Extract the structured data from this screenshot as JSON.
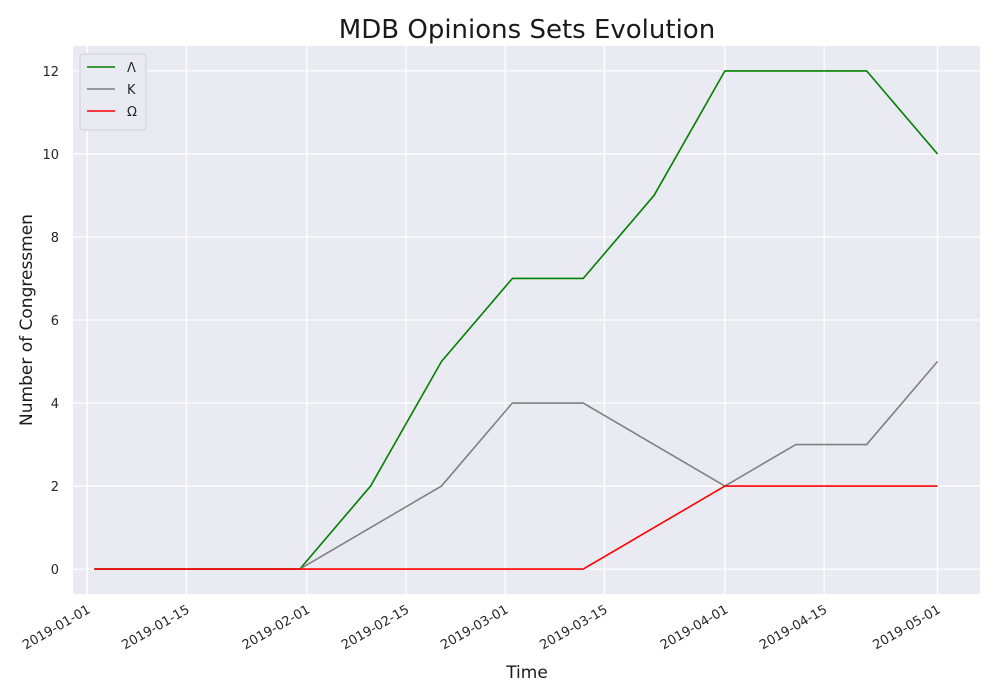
{
  "chart_data": {
    "type": "line",
    "title": "MDB Opinions Sets Evolution",
    "xlabel": "Time",
    "ylabel": "Number of Congressmen",
    "x_tick_labels": [
      "2019-01-01",
      "2019-01-15",
      "2019-02-01",
      "2019-02-15",
      "2019-03-01",
      "2019-03-15",
      "2019-04-01",
      "2019-04-15",
      "2019-05-01"
    ],
    "y_tick_labels": [
      "0",
      "2",
      "4",
      "6",
      "8",
      "10",
      "12"
    ],
    "y_ticks": [
      0,
      2,
      4,
      6,
      8,
      10,
      12
    ],
    "x": [
      "2019-01-02",
      "2019-01-31",
      "2019-02-10",
      "2019-02-20",
      "2019-03-02",
      "2019-03-12",
      "2019-03-22",
      "2019-04-01",
      "2019-04-11",
      "2019-04-21",
      "2019-05-01"
    ],
    "series": [
      {
        "name": "Λ",
        "color": "#008000",
        "values": [
          0,
          0,
          2,
          5,
          7,
          7,
          9,
          12,
          12,
          12,
          10
        ]
      },
      {
        "name": "Κ",
        "color": "#808080",
        "values": [
          0,
          0,
          1,
          2,
          4,
          4,
          3,
          2,
          3,
          3,
          5
        ]
      },
      {
        "name": "Ω",
        "color": "#ff0000",
        "values": [
          0,
          0,
          0,
          0,
          0,
          0,
          1,
          2,
          2,
          2,
          2
        ]
      }
    ],
    "xlim": [
      "2018-12-30",
      "2019-05-07"
    ],
    "ylim": [
      -0.6,
      12.6
    ],
    "grid": true,
    "legend_position": "top-left",
    "background": "#eaeaf2"
  }
}
